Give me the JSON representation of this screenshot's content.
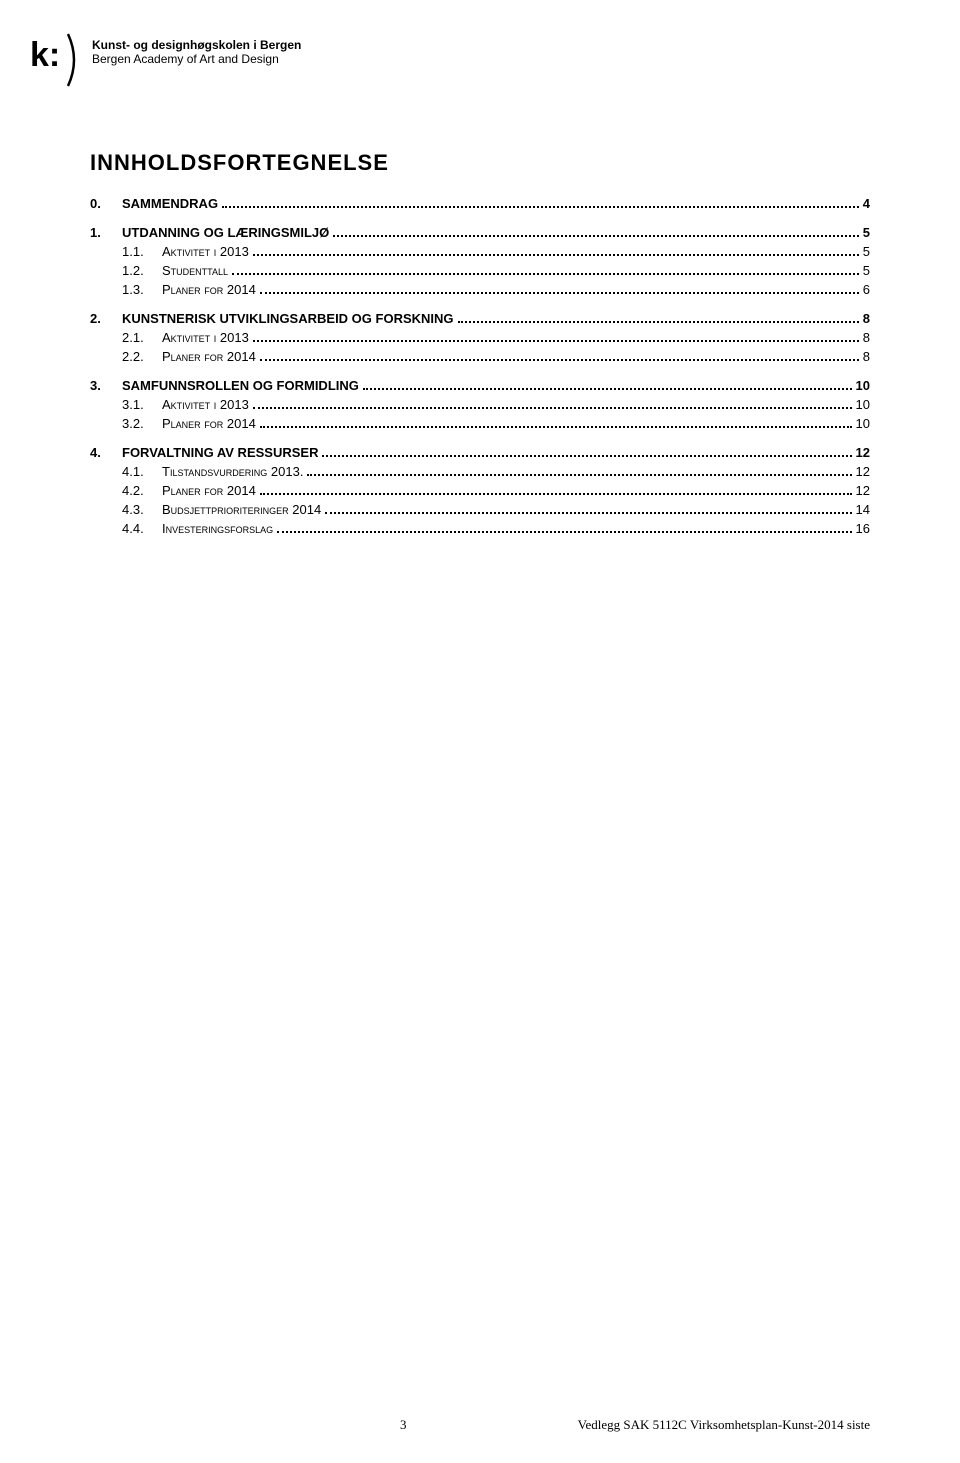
{
  "header": {
    "line1": "Kunst- og designhøgskolen i Bergen",
    "line2": "Bergen Academy of Art and Design"
  },
  "title": "INNHOLDSFORTEGNELSE",
  "toc": [
    {
      "level": 0,
      "num": "0.",
      "label": "SAMMENDRAG",
      "page": "4"
    },
    {
      "level": 0,
      "num": "1.",
      "label": "UTDANNING OG LÆRINGSMILJØ",
      "page": "5"
    },
    {
      "level": 1,
      "num": "1.1.",
      "label": "Aktivitet i 2013",
      "page": "5"
    },
    {
      "level": 1,
      "num": "1.2.",
      "label": "Studenttall",
      "page": "5"
    },
    {
      "level": 1,
      "num": "1.3.",
      "label": "Planer for 2014",
      "page": "6"
    },
    {
      "level": 0,
      "num": "2.",
      "label": "KUNSTNERISK UTVIKLINGSARBEID OG FORSKNING",
      "page": "8"
    },
    {
      "level": 1,
      "num": "2.1.",
      "label": "Aktivitet i 2013",
      "page": "8"
    },
    {
      "level": 1,
      "num": "2.2.",
      "label": "Planer for 2014",
      "page": "8"
    },
    {
      "level": 0,
      "num": "3.",
      "label": "SAMFUNNSROLLEN OG FORMIDLING",
      "page": "10"
    },
    {
      "level": 1,
      "num": "3.1.",
      "label": "Aktivitet i 2013",
      "page": "10"
    },
    {
      "level": 1,
      "num": "3.2.",
      "label": "Planer for 2014",
      "page": "10"
    },
    {
      "level": 0,
      "num": "4.",
      "label": "FORVALTNING AV RESSURSER",
      "page": "12"
    },
    {
      "level": 1,
      "num": "4.1.",
      "label": "Tilstandsvurdering 2013.",
      "page": "12"
    },
    {
      "level": 1,
      "num": "4.2.",
      "label": "Planer for 2014",
      "page": "12"
    },
    {
      "level": 1,
      "num": "4.3.",
      "label": "Budsjettprioriteringer 2014",
      "page": "14"
    },
    {
      "level": 1,
      "num": "4.4.",
      "label": "Investeringsforslag",
      "page": "16"
    }
  ],
  "footer": {
    "pagenum": "3",
    "text": "Vedlegg SAK 5112C Virksomhetsplan-Kunst-2014 siste"
  }
}
